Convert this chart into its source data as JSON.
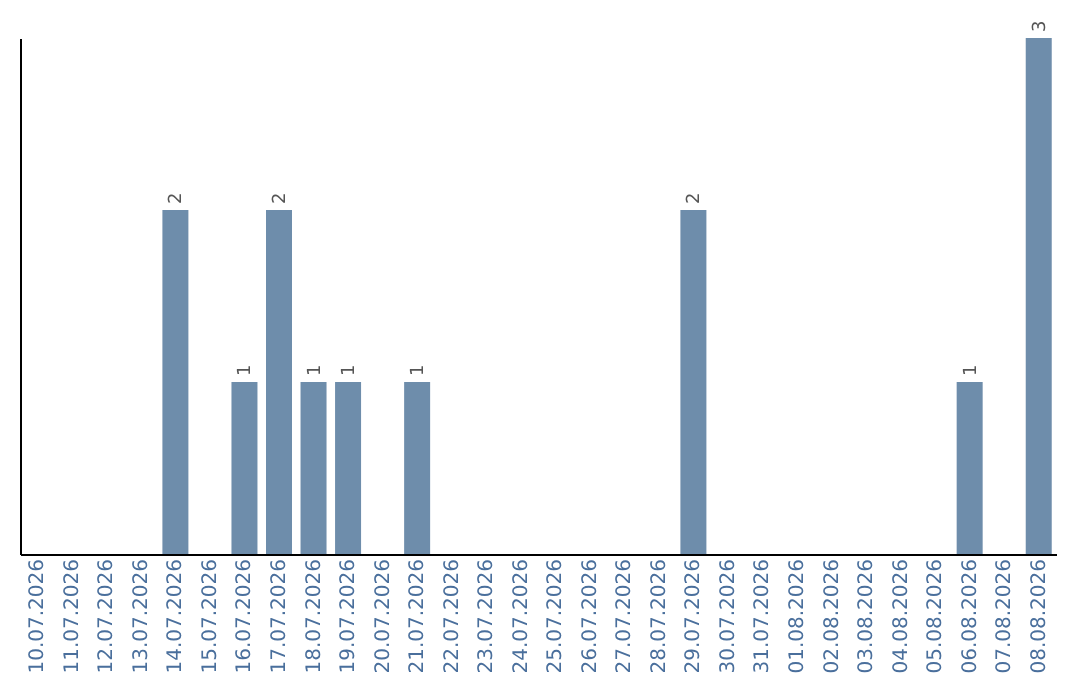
{
  "chart_data": {
    "type": "bar",
    "categories": [
      "10.07.2026",
      "11.07.2026",
      "12.07.2026",
      "13.07.2026",
      "14.07.2026",
      "15.07.2026",
      "16.07.2026",
      "17.07.2026",
      "18.07.2026",
      "19.07.2026",
      "20.07.2026",
      "21.07.2026",
      "22.07.2026",
      "23.07.2026",
      "24.07.2026",
      "25.07.2026",
      "26.07.2026",
      "27.07.2026",
      "28.07.2026",
      "29.07.2026",
      "30.07.2026",
      "31.07.2026",
      "01.08.2026",
      "02.08.2026",
      "03.08.2026",
      "04.08.2026",
      "05.08.2026",
      "06.08.2026",
      "07.08.2026",
      "08.08.2026"
    ],
    "values": [
      0,
      0,
      0,
      0,
      2,
      0,
      1,
      2,
      1,
      1,
      0,
      1,
      0,
      0,
      0,
      0,
      0,
      0,
      0,
      2,
      0,
      0,
      0,
      0,
      0,
      0,
      0,
      1,
      0,
      3
    ],
    "value_labels": [
      null,
      null,
      null,
      null,
      "2",
      null,
      "1",
      "2",
      "1",
      "1",
      null,
      "1",
      null,
      null,
      null,
      null,
      null,
      null,
      null,
      "2",
      null,
      null,
      null,
      null,
      null,
      null,
      null,
      "1",
      null,
      "3"
    ],
    "color": "#6e8dab",
    "tick_labels": "x"
  }
}
